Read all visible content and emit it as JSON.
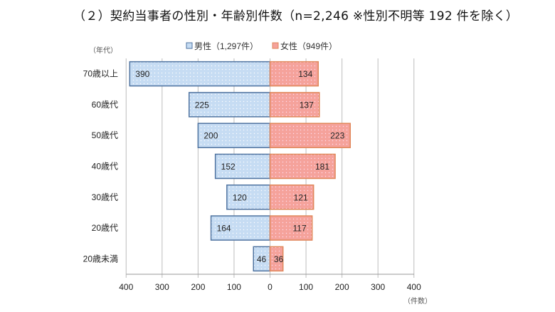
{
  "chart_data": {
    "type": "bar",
    "orientation": "horizontal-diverging",
    "title": "（２）契約当事者の性別・年齢別件数（n=2,246 ※性別不明等 192 件を除く）",
    "ylabel": "（年代）",
    "xlabel": "（件数）",
    "categories": [
      "70歳以上",
      "60歳代",
      "50歳代",
      "40歳代",
      "30歳代",
      "20歳代",
      "20歳未満"
    ],
    "series": [
      {
        "name": "男性（1,297件）",
        "side": "left",
        "color": "#c6dcf3",
        "border": "#4f73a0",
        "values": [
          390,
          225,
          200,
          152,
          120,
          164,
          46
        ]
      },
      {
        "name": "女性（949件）",
        "side": "right",
        "color": "#f5a29b",
        "border": "#e0875a",
        "values": [
          134,
          137,
          223,
          181,
          121,
          117,
          36
        ]
      }
    ],
    "xlim": [
      -400,
      400
    ],
    "xticks": [
      "400",
      "300",
      "200",
      "100",
      "0",
      "100",
      "200",
      "300",
      "400"
    ],
    "grid": true,
    "legend": "top",
    "data_labels": true
  }
}
